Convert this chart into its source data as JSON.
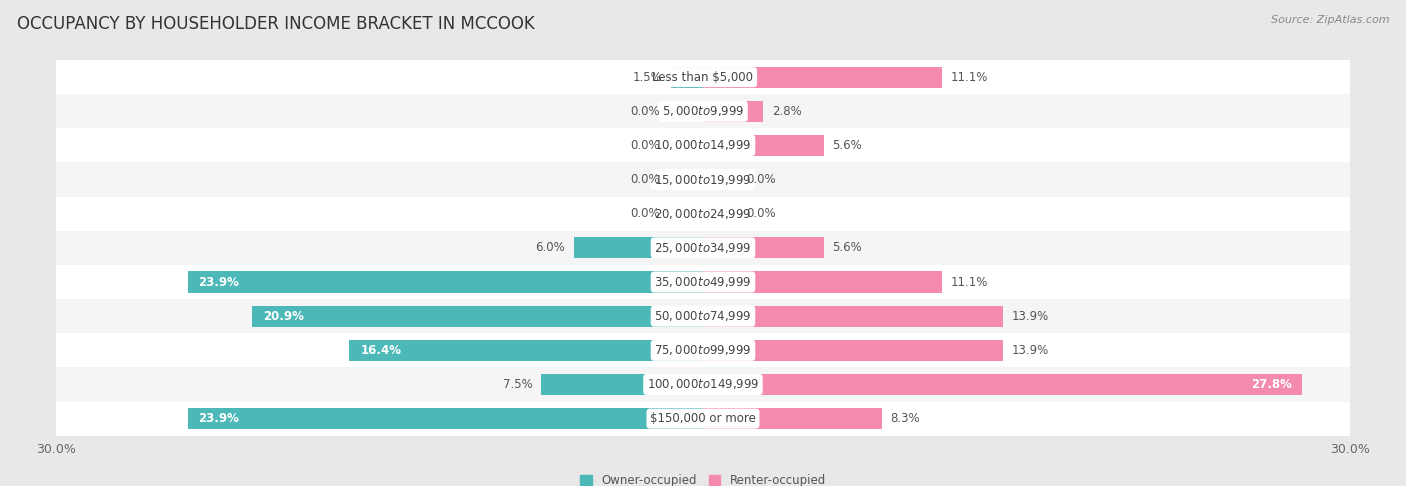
{
  "title": "OCCUPANCY BY HOUSEHOLDER INCOME BRACKET IN MCCOOK",
  "source": "Source: ZipAtlas.com",
  "categories": [
    "Less than $5,000",
    "$5,000 to $9,999",
    "$10,000 to $14,999",
    "$15,000 to $19,999",
    "$20,000 to $24,999",
    "$25,000 to $34,999",
    "$35,000 to $49,999",
    "$50,000 to $74,999",
    "$75,000 to $99,999",
    "$100,000 to $149,999",
    "$150,000 or more"
  ],
  "owner_values": [
    1.5,
    0.0,
    0.0,
    0.0,
    0.0,
    6.0,
    23.9,
    20.9,
    16.4,
    7.5,
    23.9
  ],
  "renter_values": [
    11.1,
    2.8,
    5.6,
    0.0,
    0.0,
    5.6,
    11.1,
    13.9,
    13.9,
    27.8,
    8.3
  ],
  "owner_color": "#4db8b8",
  "renter_color": "#f48aae",
  "bg_color": "#e8e8e8",
  "row_color_odd": "#f5f5f5",
  "row_color_even": "#ffffff",
  "axis_max": 30.0,
  "bar_height": 0.62,
  "title_fontsize": 12,
  "label_fontsize": 8.5,
  "cat_fontsize": 8.5,
  "tick_fontsize": 9,
  "source_fontsize": 8
}
